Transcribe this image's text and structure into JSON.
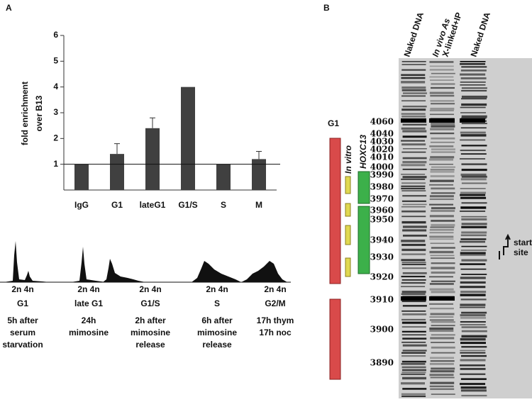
{
  "panel_labels": [
    "A",
    "B"
  ],
  "chart_data": {
    "type": "bar",
    "ylabel": [
      "fold enrichment",
      "over B13"
    ],
    "categories": [
      "IgG",
      "G1",
      "lateG1",
      "G1/S",
      "S",
      "M"
    ],
    "values": [
      1,
      1.4,
      2.4,
      4,
      1,
      1.2
    ],
    "errors": [
      null,
      0.4,
      0.4,
      null,
      null,
      0.3
    ],
    "color": "#404040",
    "ylim": [
      0,
      6
    ],
    "yticks": [
      1,
      2,
      3,
      4,
      5,
      6
    ],
    "hline": 1
  },
  "flow": [
    {
      "ploidy": "2n 4n",
      "phase": "G1",
      "desc": [
        "5h after",
        "serum",
        "starvation"
      ]
    },
    {
      "ploidy": "2n 4n",
      "phase": "late G1",
      "desc": [
        "24h",
        "mimosine"
      ]
    },
    {
      "ploidy": "2n 4n",
      "phase": "G1/S",
      "desc": [
        "2h after",
        "mimosine",
        "release"
      ]
    },
    {
      "ploidy": "2n 4n",
      "phase": "S",
      "desc": [
        "6h after",
        "mimosine",
        "release"
      ]
    },
    {
      "ploidy": "2n 4n",
      "phase": "G2/M",
      "desc": [
        "17h thym",
        "17h noc"
      ]
    }
  ],
  "gel": {
    "lanes": [
      "Naked DNA",
      [
        "In vivo As",
        "X-linked+IP"
      ],
      "Naked DNA"
    ],
    "markers": [
      "4060",
      "4040",
      "4030",
      "4020",
      "4010",
      "4000",
      "3990",
      "3980",
      "3970",
      "3960",
      "3950",
      "3940",
      "3930",
      "3920",
      "3910",
      "3900",
      "3890"
    ],
    "g1_label": "G1",
    "in_vitro_label": "In vitro",
    "gene_label": "HOXC13",
    "start_label": [
      "start",
      "site"
    ]
  }
}
